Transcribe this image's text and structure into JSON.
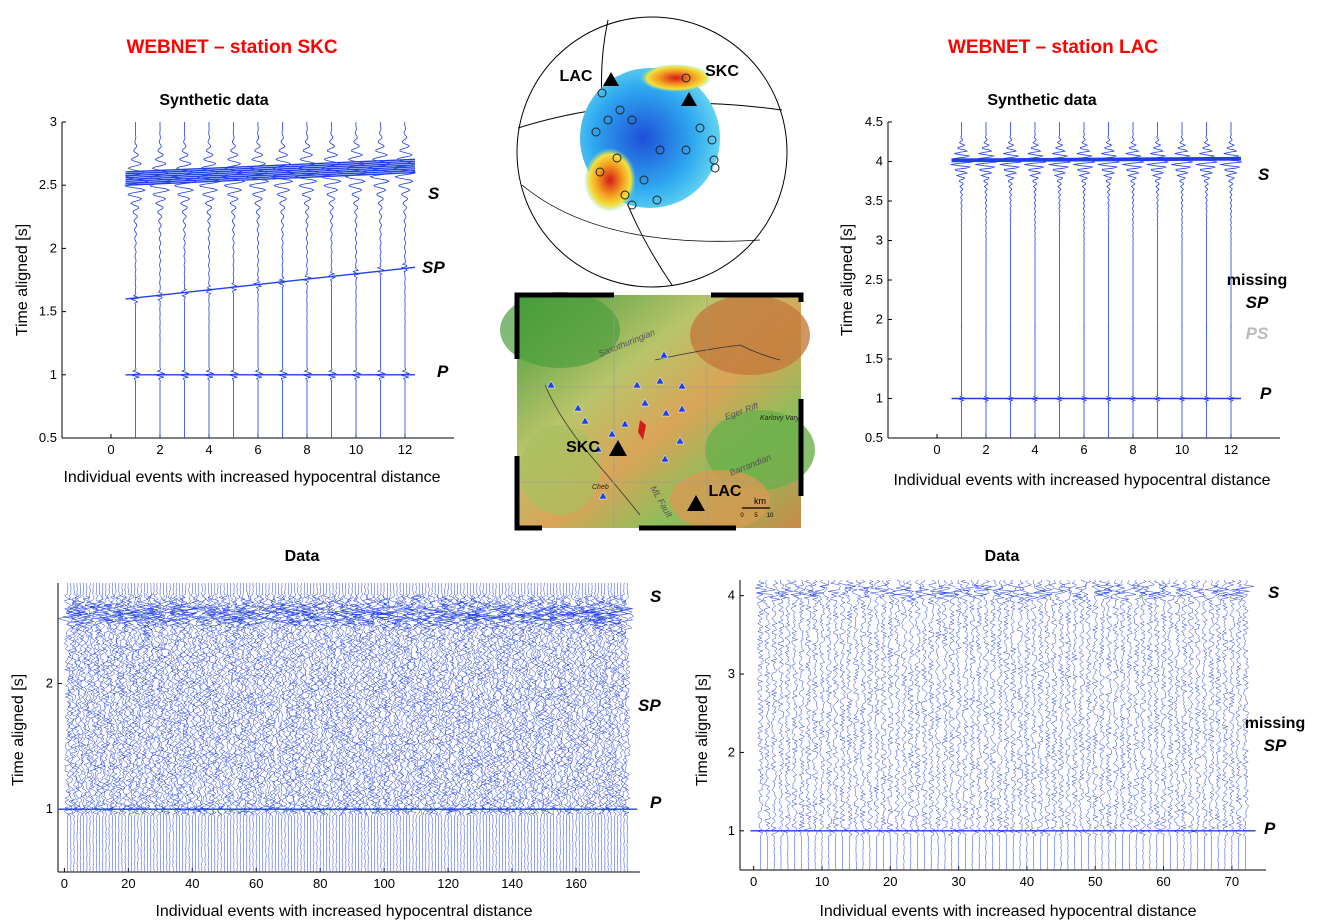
{
  "titles": {
    "left_station": "WEBNET – station SKC",
    "right_station": "WEBNET – station LAC"
  },
  "panels": {
    "syn_skc": {
      "title": "Synthetic data",
      "xlabel": "Individual events with increased hypocentral distance",
      "ylabel": "Time aligned [s]"
    },
    "syn_lac": {
      "title": "Synthetic data",
      "xlabel": "Individual events with increased hypocentral distance",
      "ylabel": "Time aligned [s]"
    },
    "data_skc": {
      "title": "Data",
      "xlabel": "Individual events with increased hypocentral distance",
      "ylabel": "Time aligned [s]"
    },
    "data_lac": {
      "title": "Data",
      "xlabel": "Individual events with increased hypocentral distance",
      "ylabel": "Time aligned [s]"
    }
  },
  "phases": {
    "s": "S",
    "sp": "SP",
    "p": "P",
    "ps": "PS",
    "missing": "missing"
  },
  "beachball": {
    "station_a": "LAC",
    "station_b": "SKC"
  },
  "map": {
    "station_a": "SKC",
    "station_b": "LAC",
    "region_1": "Saxothuringian",
    "region_2": "Eger Rift",
    "region_3": "Barrandian",
    "fault": "ML Fault",
    "city_1": "Cheb",
    "city_2": "Karlovy Vary",
    "scale_unit": "km",
    "scale_ticks": [
      "0",
      "5",
      "10"
    ]
  },
  "colors": {
    "trace": "#1f3fe6",
    "title": "#ff0000",
    "ps_label": "#bbbbbb"
  },
  "chart_data": [
    {
      "type": "line",
      "name_ref": "syn_skc",
      "xlim": [
        -2,
        14
      ],
      "ylim": [
        0.5,
        3
      ],
      "xticks": [
        0,
        2,
        4,
        6,
        8,
        10,
        12
      ],
      "yticks": [
        0.5,
        1,
        1.5,
        2,
        2.5,
        3
      ],
      "n_traces": 12,
      "phase_times": {
        "P": 1.0,
        "SP_first": 1.6,
        "SP_last": 1.85,
        "S": 2.55
      }
    },
    {
      "type": "line",
      "name_ref": "syn_lac",
      "xlim": [
        -2,
        14
      ],
      "ylim": [
        0.5,
        4.5
      ],
      "xticks": [
        0,
        2,
        4,
        6,
        8,
        10,
        12
      ],
      "yticks": [
        0.5,
        1,
        1.5,
        2,
        2.5,
        3,
        3.5,
        4,
        4.5
      ],
      "n_traces": 12,
      "phase_times": {
        "P": 1.0,
        "PS": 1.9,
        "S": 4.02
      }
    },
    {
      "type": "line",
      "name_ref": "data_skc",
      "xlim": [
        -2,
        180
      ],
      "ylim": [
        0.5,
        2.8
      ],
      "xticks": [
        0,
        20,
        40,
        60,
        80,
        100,
        120,
        140,
        160
      ],
      "yticks": [
        1,
        2
      ],
      "n_traces": 176,
      "phase_times": {
        "P": 1.0,
        "SP": 1.8,
        "S": 2.55
      }
    },
    {
      "type": "line",
      "name_ref": "data_lac",
      "xlim": [
        -2,
        75
      ],
      "ylim": [
        0.5,
        4.2
      ],
      "xticks": [
        0,
        10,
        20,
        30,
        40,
        50,
        60,
        70
      ],
      "yticks": [
        1,
        2,
        3,
        4
      ],
      "n_traces": 72,
      "phase_times": {
        "P": 1.0,
        "S": 4.05
      }
    }
  ]
}
